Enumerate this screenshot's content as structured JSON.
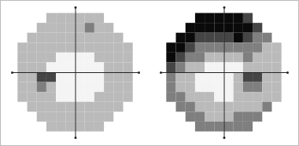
{
  "chart_data": [
    {
      "type": "heatmap",
      "tick_labels": false,
      "grid": false,
      "xlim": [
        -33,
        33
      ],
      "ylim": [
        -33,
        33
      ],
      "zlim": [
        0,
        4
      ],
      "x": [
        -27.5,
        -22.5,
        -17.5,
        -12.5,
        -7.5,
        -2.5,
        2.5,
        7.5,
        12.5,
        17.5,
        22.5,
        27.5
      ],
      "y": [
        27.5,
        22.5,
        17.5,
        12.5,
        7.5,
        2.5,
        -2.5,
        -7.5,
        -12.5,
        -17.5,
        -22.5,
        -27.5
      ],
      "cells": [
        [
          null,
          null,
          null,
          1,
          1,
          1,
          1,
          1,
          1,
          null,
          null,
          null
        ],
        [
          null,
          null,
          1,
          1,
          1,
          1,
          1,
          2,
          1,
          1,
          null,
          null
        ],
        [
          null,
          1,
          1,
          1,
          1,
          1,
          1,
          1,
          1,
          1,
          1,
          null
        ],
        [
          1,
          1,
          1,
          1,
          1,
          1,
          1,
          1,
          1,
          1,
          1,
          1
        ],
        [
          1,
          1,
          1,
          1,
          0,
          0,
          0,
          0,
          1,
          1,
          1,
          1
        ],
        [
          1,
          1,
          1,
          0,
          0,
          0,
          0,
          0,
          0,
          1,
          1,
          1
        ],
        [
          1,
          1,
          3,
          3,
          0,
          0,
          0,
          0,
          0,
          1,
          1,
          1
        ],
        [
          1,
          1,
          2,
          1,
          0,
          0,
          0,
          0,
          0,
          1,
          1,
          1
        ],
        [
          1,
          1,
          1,
          1,
          0,
          0,
          0,
          0,
          1,
          1,
          1,
          1
        ],
        [
          null,
          1,
          1,
          1,
          1,
          1,
          1,
          1,
          1,
          1,
          1,
          null
        ],
        [
          null,
          null,
          1,
          1,
          1,
          1,
          1,
          1,
          1,
          1,
          null,
          null
        ],
        [
          null,
          null,
          null,
          1,
          1,
          1,
          1,
          1,
          1,
          null,
          null,
          null
        ]
      ]
    },
    {
      "type": "heatmap",
      "tick_labels": false,
      "grid": false,
      "xlim": [
        -33,
        33
      ],
      "ylim": [
        -33,
        33
      ],
      "zlim": [
        0,
        4
      ],
      "x": [
        -27.5,
        -22.5,
        -17.5,
        -12.5,
        -7.5,
        -2.5,
        2.5,
        7.5,
        12.5,
        17.5,
        22.5,
        27.5
      ],
      "y": [
        27.5,
        22.5,
        17.5,
        12.5,
        7.5,
        2.5,
        -2.5,
        -7.5,
        -12.5,
        -17.5,
        -22.5,
        -27.5
      ],
      "cells": [
        [
          null,
          null,
          null,
          4,
          4,
          4,
          4,
          4,
          3,
          null,
          null,
          null
        ],
        [
          null,
          null,
          4,
          4,
          4,
          4,
          4,
          4,
          4,
          3,
          null,
          null
        ],
        [
          null,
          4,
          4,
          3,
          3,
          3,
          3,
          4,
          3,
          2,
          2,
          null
        ],
        [
          4,
          4,
          3,
          2,
          2,
          2,
          2,
          2,
          2,
          2,
          1,
          1
        ],
        [
          4,
          3,
          2,
          2,
          1,
          1,
          1,
          1,
          2,
          1,
          1,
          1
        ],
        [
          3,
          2,
          1,
          1,
          0,
          0,
          0,
          0,
          1,
          1,
          1,
          1
        ],
        [
          2,
          1,
          1,
          0,
          0,
          0,
          0,
          1,
          3,
          3,
          1,
          1
        ],
        [
          2,
          1,
          1,
          0,
          0,
          0,
          0,
          1,
          2,
          2,
          1,
          1
        ],
        [
          2,
          2,
          1,
          1,
          1,
          0,
          0,
          1,
          1,
          1,
          1,
          1
        ],
        [
          null,
          2,
          2,
          1,
          1,
          1,
          1,
          1,
          1,
          1,
          2,
          null
        ],
        [
          null,
          null,
          2,
          2,
          1,
          1,
          1,
          2,
          2,
          2,
          null,
          null
        ],
        [
          null,
          null,
          null,
          2,
          2,
          2,
          2,
          2,
          2,
          null,
          null,
          null
        ]
      ]
    }
  ]
}
